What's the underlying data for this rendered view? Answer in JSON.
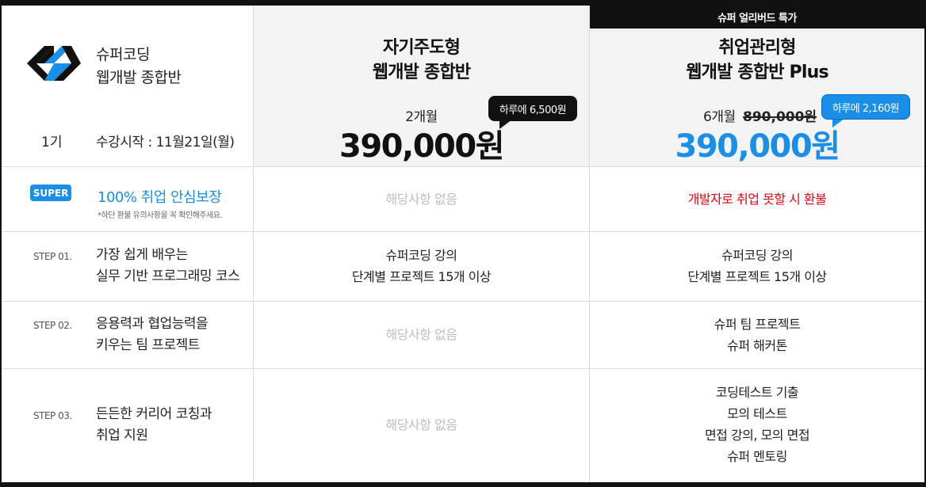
{
  "brand": {
    "line1": "슈퍼코딩",
    "line2": "웹개발 종합반",
    "cohort": "1기",
    "start": "수강시작 : 11월21일(월)"
  },
  "plans": {
    "a": {
      "title1": "자기주도형",
      "title2": "웹개발 종합반",
      "duration": "2개월",
      "price": "390,000원",
      "bubble": "하루에 6,500원"
    },
    "b": {
      "banner": "슈퍼 얼리버드 특가",
      "title1": "취업관리형",
      "title2": "웹개발 종합반 Plus",
      "duration": "6개월",
      "orig_price": "890,000원",
      "price": "390,000원",
      "bubble": "하루에 2,160원"
    }
  },
  "super_row": {
    "badge": "SUPER",
    "label": "100% 취업 안심보장",
    "note": "*하단 환불 유의사항을 꼭 확인해주세요.",
    "a": "해당사항 없음",
    "b": "개발자로 취업 못할 시 환불"
  },
  "steps": [
    {
      "no": "STEP 01.",
      "text1": "가장 쉽게 배우는",
      "text2": "실무 기반 프로그래밍 코스",
      "a1": "슈퍼코딩 강의",
      "a2": "단계별 프로젝트 15개 이상",
      "b1": "슈퍼코딩 강의",
      "b2": "단계별 프로젝트 15개 이상"
    },
    {
      "no": "STEP 02.",
      "text1": "응용력과 협업능력을",
      "text2": "키우는 팀 프로젝트",
      "a": "해당사항 없음",
      "b1": "슈퍼 팀 프로젝트",
      "b2": "슈퍼 해커톤"
    },
    {
      "no": "STEP 03.",
      "text1": "든든한 커리어 코칭과",
      "text2": "취업 지원",
      "a": "해당사항 없음",
      "b1": "코딩테스트 기출",
      "b2": "모의 테스트",
      "b3": "면접 강의, 모의 면접",
      "b4": "슈퍼 멘토링"
    }
  ],
  "colors": {
    "accent": "#1a8fe8",
    "refund_red": "#e60012",
    "na_gray": "#bdbdbd"
  }
}
